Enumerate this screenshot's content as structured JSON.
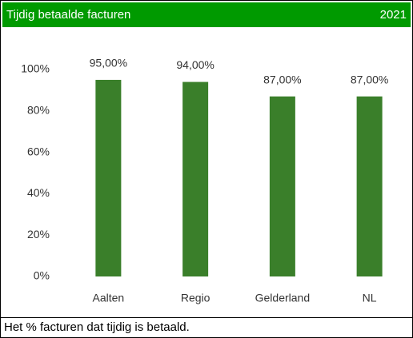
{
  "chart_data": {
    "type": "bar",
    "title": "Tijdig betaalde facturen",
    "subtitle": "2021",
    "footnote": "Het % facturen dat tijdig is betaald.",
    "categories": [
      "Aalten",
      "Regio",
      "Gelderland",
      "NL"
    ],
    "values": [
      95,
      94,
      87,
      87
    ],
    "value_labels": [
      "95,00%",
      "94,00%",
      "87,00%",
      "87,00%"
    ],
    "color": "#3a7f2a",
    "ylim": [
      0,
      100
    ],
    "yticks": [
      {
        "value": 0,
        "label": "0%"
      },
      {
        "value": 20,
        "label": "20%"
      },
      {
        "value": 40,
        "label": "40%"
      },
      {
        "value": 60,
        "label": "60%"
      },
      {
        "value": 80,
        "label": "80%"
      },
      {
        "value": 100,
        "label": "100%"
      }
    ],
    "grid": false
  }
}
